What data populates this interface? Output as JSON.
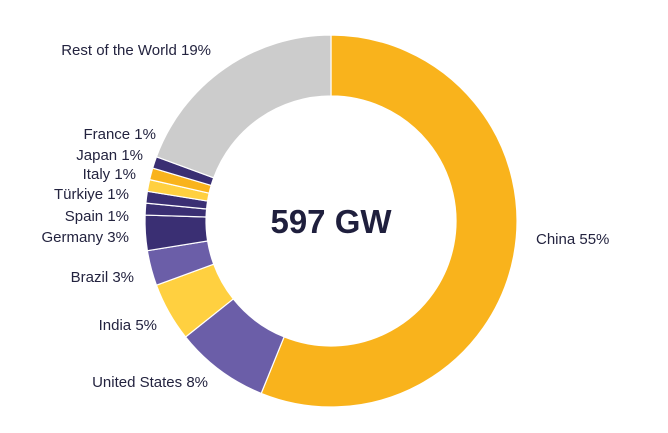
{
  "chart_data": {
    "type": "pie",
    "variant": "donut",
    "center_label": "597 GW",
    "legend": "labels beside slices",
    "slices": [
      {
        "label": "China 55%",
        "value": 55,
        "color": "#f9b31c"
      },
      {
        "label": "United States 8%",
        "value": 8,
        "color": "#6b5ea8"
      },
      {
        "label": "India 5%",
        "value": 5,
        "color": "#ffd040"
      },
      {
        "label": "Brazil 3%",
        "value": 3,
        "color": "#6b5ea8"
      },
      {
        "label": "Germany 3%",
        "value": 3,
        "color": "#3a2f73"
      },
      {
        "label": "Spain 1%",
        "value": 1,
        "color": "#3a2f73"
      },
      {
        "label": "Türkiye 1%",
        "value": 1,
        "color": "#3a2f73"
      },
      {
        "label": "Italy 1%",
        "value": 1,
        "color": "#ffd040"
      },
      {
        "label": "Japan 1%",
        "value": 1,
        "color": "#f9b31c"
      },
      {
        "label": "France 1%",
        "value": 1,
        "color": "#3a2f73"
      },
      {
        "label": "Rest of the World 19%",
        "value": 19,
        "color": "#cccccc"
      }
    ]
  }
}
